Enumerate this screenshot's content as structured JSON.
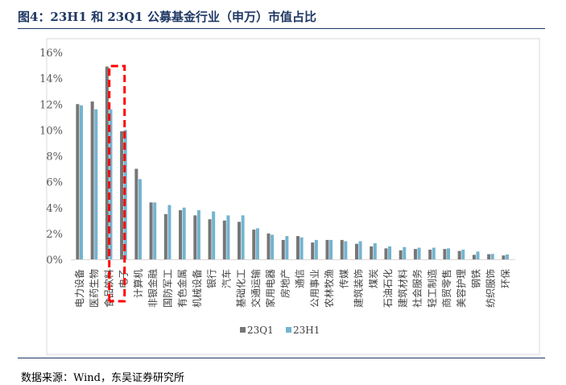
{
  "title": "图4：23H1 和 23Q1 公募基金行业（申万）市值占比",
  "source": "数据来源：Wind，东吴证券研究所",
  "colors": {
    "23Q1": "#767676",
    "23H1": "#74b4cf",
    "highlight": "#ff0000"
  },
  "chart_data": {
    "type": "bar",
    "title": "",
    "ylim": [
      0,
      16
    ],
    "yticks": [
      "0%",
      "2%",
      "4%",
      "6%",
      "8%",
      "10%",
      "12%",
      "14%",
      "16%"
    ],
    "grid": false,
    "legend": "bottom",
    "highlight_category": "电子",
    "categories": [
      "电力设备",
      "医药生物",
      "食品饮料",
      "电子",
      "计算机",
      "非银金融",
      "国防军工",
      "有色金属",
      "机械设备",
      "银行",
      "汽车",
      "基础化工",
      "交通运输",
      "家用电器",
      "房地产",
      "通信",
      "公用事业",
      "农林牧渔",
      "传媒",
      "建筑装饰",
      "煤炭",
      "石油石化",
      "建筑材料",
      "社会服务",
      "轻工制造",
      "商贸零售",
      "美容护理",
      "钢铁",
      "纺织服饰",
      "环保"
    ],
    "series": [
      {
        "name": "23Q1",
        "values": [
          12.0,
          12.2,
          14.9,
          9.9,
          7.0,
          4.4,
          3.5,
          3.8,
          3.4,
          3.1,
          3.0,
          2.9,
          2.3,
          2.0,
          1.5,
          1.8,
          1.3,
          1.5,
          1.5,
          1.2,
          1.0,
          0.85,
          0.7,
          0.8,
          0.75,
          0.8,
          0.65,
          0.35,
          0.4,
          0.3
        ]
      },
      {
        "name": "23H1",
        "values": [
          11.9,
          11.6,
          11.6,
          10.0,
          6.2,
          4.4,
          4.2,
          4.0,
          3.8,
          3.7,
          3.4,
          3.4,
          2.4,
          1.9,
          1.8,
          1.7,
          1.5,
          1.5,
          1.4,
          1.4,
          1.25,
          1.0,
          0.95,
          0.9,
          0.9,
          0.85,
          0.75,
          0.6,
          0.42,
          0.38
        ]
      }
    ]
  }
}
